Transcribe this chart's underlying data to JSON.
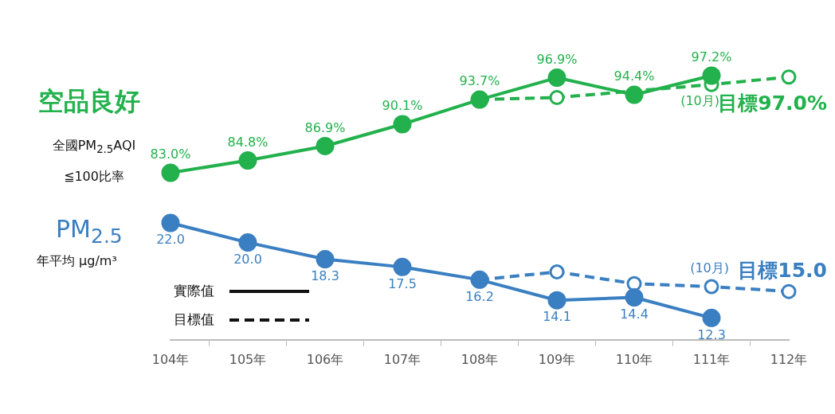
{
  "chart_data": [
    {
      "type": "line",
      "ylabel": "空品良好",
      "annotations": [
        "全國PM$_{2.5}$AQI ≦100比率",
        "(10月)"
      ],
      "categories": [
        null,
        null,
        null,
        null,
        null,
        null,
        null,
        null,
        null
      ],
      "tick_labels": false,
      "series": [
        {
          "color": "#22b14c",
          "values": [
            83.0,
            84.8,
            86.9,
            90.1,
            93.7,
            96.9,
            94.4,
            97.2,
            null
          ],
          "value_labels": [
            "83.0%",
            "84.8%",
            "86.9%",
            "90.1%",
            "93.7%",
            "96.9%",
            "94.4%",
            "97.2%",
            null
          ],
          "marker": "circle",
          "line_style": "solid"
        },
        {
          "color": "#22b14c",
          "values": [
            null,
            null,
            null,
            null,
            93.7,
            94.0,
            null,
            95.9,
            97.0
          ],
          "value_labels": [
            null,
            null,
            null,
            null,
            null,
            null,
            null,
            null,
            "目標97.0%"
          ],
          "marker": "circle",
          "line_style": "dashed"
        }
      ]
    },
    {
      "type": "line",
      "ylabel": "PM$_{2.5}$",
      "annotations": [
        "年平均 μg/m³",
        "實際值",
        "目標值",
        "(10月)"
      ],
      "categories": [
        "104年",
        "105年",
        "106年",
        "107年",
        "108年",
        "109年",
        "110年",
        "111年",
        "112年"
      ],
      "tick_labels": "x",
      "series": [
        {
          "color": "#3a7fc1",
          "values": [
            22.0,
            20.0,
            18.3,
            17.5,
            16.2,
            14.1,
            14.4,
            12.3,
            null
          ],
          "value_labels": [
            "22.0",
            "20.0",
            "18.3",
            "17.5",
            "16.2",
            "14.1",
            "14.4",
            "12.3",
            null
          ],
          "marker": "circle",
          "line_style": "solid"
        },
        {
          "color": "#3a7fc1",
          "values": [
            null,
            null,
            null,
            null,
            16.2,
            17.0,
            15.8,
            15.5,
            15.0
          ],
          "value_labels": [
            null,
            null,
            null,
            null,
            null,
            null,
            null,
            null,
            "目標15.0"
          ],
          "marker": "circle",
          "line_style": "dashed"
        }
      ]
    }
  ]
}
